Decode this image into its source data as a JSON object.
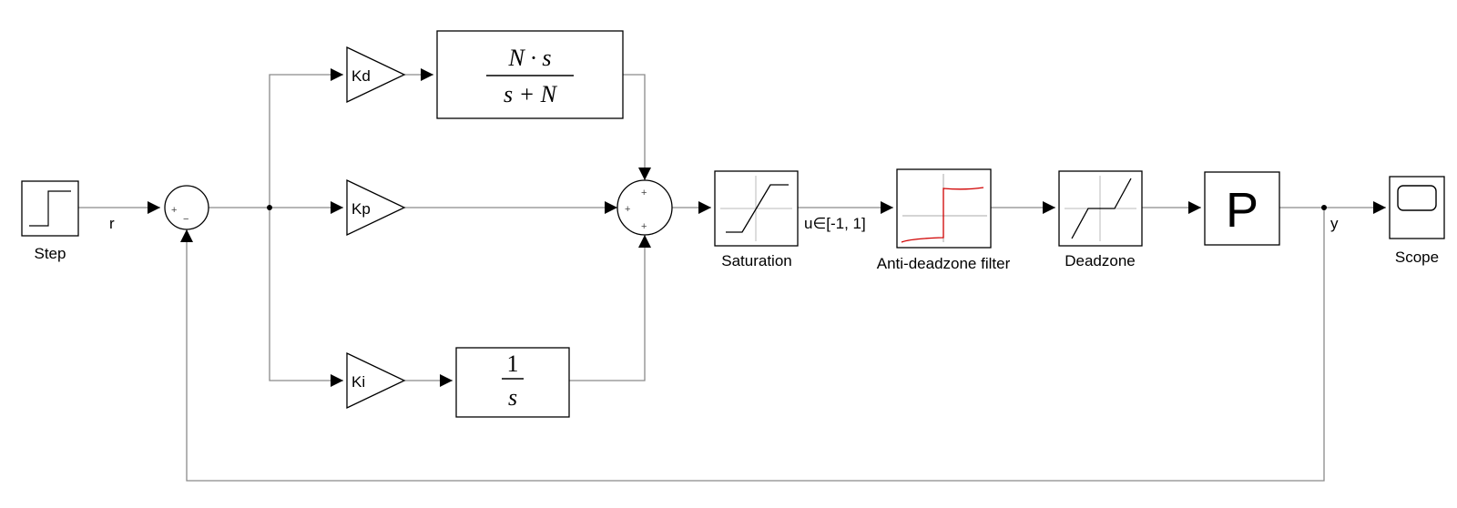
{
  "blocks": {
    "step": {
      "label": "Step"
    },
    "kd": {
      "label": "Kd"
    },
    "kp": {
      "label": "Kp"
    },
    "ki": {
      "label": "Ki"
    },
    "derivative_filter": {
      "numerator": "N · s",
      "denominator": "s + N"
    },
    "integrator": {
      "numerator": "1",
      "denominator": "s"
    },
    "saturation": {
      "label": "Saturation"
    },
    "anti_deadzone": {
      "label": "Anti-deadzone filter"
    },
    "deadzone": {
      "label": "Deadzone"
    },
    "plant": {
      "label": "P"
    },
    "scope": {
      "label": "Scope"
    }
  },
  "sum1": {
    "signs": [
      "+",
      "−"
    ]
  },
  "sum2": {
    "signs": [
      "+",
      "+",
      "+"
    ]
  },
  "signals": {
    "r": "r",
    "u": "u∈[-1, 1]",
    "y": "y"
  },
  "colors": {
    "wire": "#8a8a8a",
    "block_border": "#000000",
    "filter_curve": "#d00000"
  }
}
